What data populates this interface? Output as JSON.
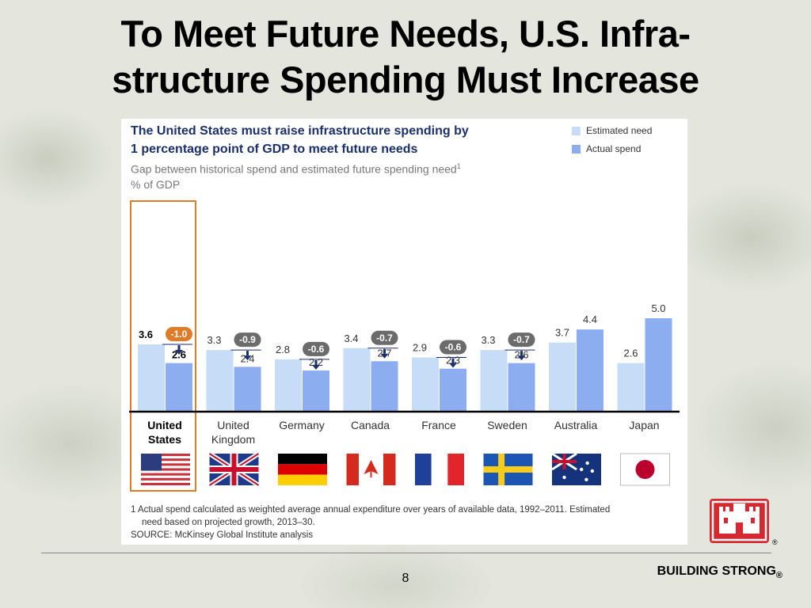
{
  "slide": {
    "title_line1": "To Meet Future Needs, U.S. Infra-",
    "title_line2": "structure Spending Must Increase",
    "page_number": "8",
    "footer_brand": "BUILDING STRONG",
    "footer_reg": "®"
  },
  "colors": {
    "estimated_need": "#c6dcf7",
    "actual_spend": "#8cadf0",
    "highlight": "#e07b27",
    "gap_badge": "#6b6b6b",
    "title_blue": "#1a2f6e"
  },
  "chart_data": {
    "type": "bar",
    "title_line1": "The United States must raise infrastructure spending by",
    "title_line2": "1 percentage point of GDP to meet future needs",
    "subtitle": "Gap between historical spend and estimated future spending need",
    "subtitle_sup": "1",
    "ylabel": "% of GDP",
    "ylim": [
      0,
      5.5
    ],
    "legend_position": "top-right",
    "grid": false,
    "categories": [
      [
        "United",
        "States"
      ],
      [
        "United",
        "Kingdom"
      ],
      [
        "Germany"
      ],
      [
        "Canada"
      ],
      [
        "France"
      ],
      [
        "Sweden"
      ],
      [
        "Australia"
      ],
      [
        "Japan"
      ]
    ],
    "series": [
      {
        "name": "Estimated need",
        "values": [
          3.6,
          3.3,
          2.8,
          3.4,
          2.9,
          3.3,
          3.7,
          2.6
        ],
        "labels": [
          "3.6",
          "3.3",
          "2.8",
          "3.4",
          "2.9",
          "3.3",
          "3.7",
          "2.6"
        ]
      },
      {
        "name": "Actual spend",
        "values": [
          2.6,
          2.4,
          2.2,
          2.7,
          2.3,
          2.6,
          4.4,
          5.0
        ],
        "labels": [
          "2.6",
          "2.4",
          "2.2",
          "2.7",
          "2.3",
          "2.6",
          "4.4",
          "5.0"
        ]
      }
    ],
    "gaps": [
      "-1.0",
      "-0.9",
      "-0.6",
      "-0.7",
      "-0.6",
      "-0.7",
      null,
      null
    ],
    "highlight_category": "United States",
    "flags": [
      "us-flag",
      "uk-flag",
      "germany-flag",
      "canada-flag",
      "france-flag",
      "sweden-flag",
      "australia-flag",
      "japan-flag"
    ],
    "footnote_line1": "1  Actual spend calculated as weighted average annual expenditure over years of available data, 1992–2011. Estimated",
    "footnote_line2": "need based on projected growth, 2013–30.",
    "source": "SOURCE: McKinsey Global Institute analysis"
  }
}
